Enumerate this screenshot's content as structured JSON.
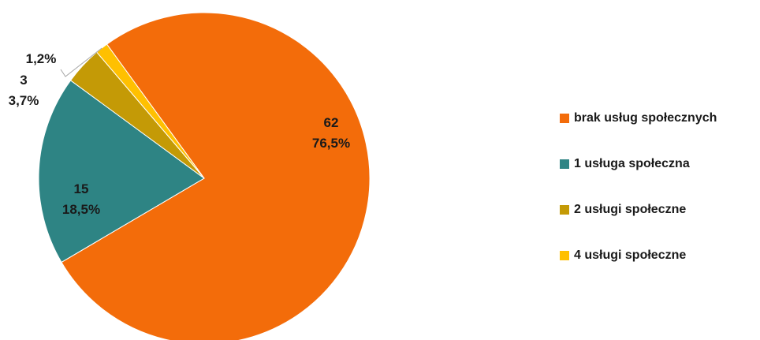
{
  "chart_data": {
    "type": "pie",
    "slices": [
      {
        "name": "brak usług społecznych",
        "value": 62,
        "percent": "76,5%",
        "count_label": "62",
        "color": "#F36C0A"
      },
      {
        "name": "1 usługa społeczna",
        "value": 15,
        "percent": "18,5%",
        "count_label": "15",
        "color": "#2E8484"
      },
      {
        "name": "2 usługi społeczne",
        "value": 3,
        "percent": "3,7%",
        "count_label": "3",
        "color": "#C49A06"
      },
      {
        "name": "4 usługi społeczne",
        "value": 1,
        "percent": "1,2%",
        "count_label": "",
        "color": "#FFC000"
      }
    ],
    "legend_position": "right"
  },
  "legend": {
    "items": [
      {
        "label": "brak usług społecznych",
        "color": "#F36C0A"
      },
      {
        "label": "1 usługa społeczna",
        "color": "#2E8484"
      },
      {
        "label": "2 usługi społeczne",
        "color": "#C49A06"
      },
      {
        "label": "4 usługi społeczne",
        "color": "#FFC000"
      }
    ]
  }
}
